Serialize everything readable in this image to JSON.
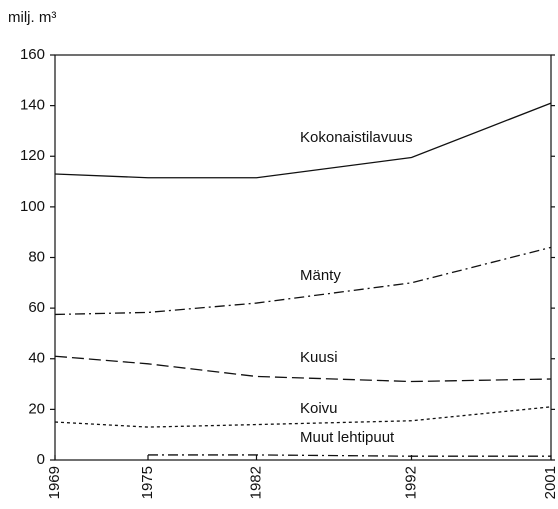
{
  "chart_data": {
    "type": "line",
    "y_label": "milj. m³",
    "x": [
      1969,
      1975,
      1982,
      1992,
      2001
    ],
    "xlim": [
      1969,
      2001
    ],
    "xticks": [
      1969,
      1975,
      1982,
      1992,
      2001
    ],
    "ylim": [
      0,
      160
    ],
    "yticks": [
      0,
      20,
      40,
      60,
      80,
      100,
      120,
      140,
      160
    ],
    "grid": false,
    "series": [
      {
        "name": "Kokonaistilavuus",
        "color": "#111111",
        "dash": "solid",
        "values": [
          113,
          111.5,
          111.5,
          119.5,
          141
        ]
      },
      {
        "name": "Mänty",
        "color": "#111111",
        "dash": "dashdot",
        "values": [
          57.5,
          58.3,
          62,
          70,
          84
        ]
      },
      {
        "name": "Kuusi",
        "color": "#111111",
        "dash": "dashed",
        "values": [
          41,
          38,
          33,
          31,
          32
        ]
      },
      {
        "name": "Koivu",
        "color": "#111111",
        "dash": "dotted",
        "values": [
          15,
          13,
          14,
          15.5,
          21
        ]
      },
      {
        "name": "Muut lehtipuut",
        "color": "#111111",
        "dash": "dashdot",
        "values": [
          null,
          2,
          2,
          1.5,
          1.5
        ]
      }
    ]
  }
}
